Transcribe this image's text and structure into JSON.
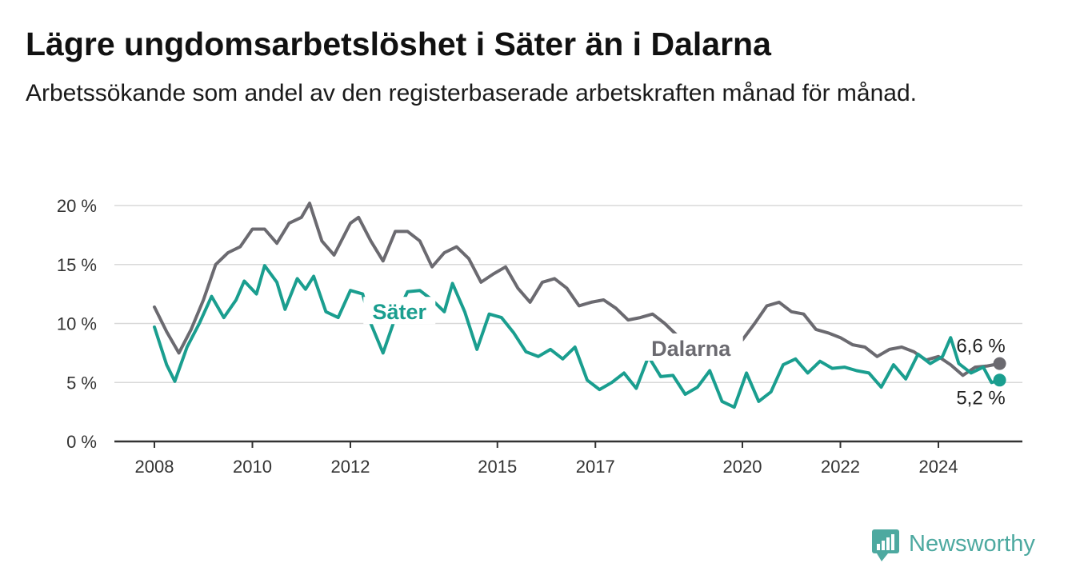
{
  "title": "Lägre ungdomsarbetslöshet i Säter än i Dalarna",
  "subtitle": "Arbetssökande som andel av den registerbaserade arbetskraften månad för månad.",
  "brand": {
    "name": "Newsworthy",
    "color": "#4da9a0"
  },
  "chart_data": {
    "type": "line",
    "x_ticks": [
      "2008",
      "2010",
      "2012",
      "2015",
      "2017",
      "2020",
      "2022",
      "2024"
    ],
    "y_ticks": [
      "0 %",
      "5 %",
      "10 %",
      "15 %",
      "20 %"
    ],
    "ylim": [
      0,
      20
    ],
    "xlim": [
      "2008-01",
      "2025-11"
    ],
    "grid": true,
    "legend": "inline",
    "series": [
      {
        "name": "Dalarna",
        "color": "#6b6a70",
        "end_label": "6,6 %",
        "points": [
          [
            "2008-01",
            11.4
          ],
          [
            "2008-04",
            9.3
          ],
          [
            "2008-07",
            7.5
          ],
          [
            "2008-10",
            9.5
          ],
          [
            "2009-01",
            12.0
          ],
          [
            "2009-04",
            15.0
          ],
          [
            "2009-07",
            16.0
          ],
          [
            "2009-10",
            16.5
          ],
          [
            "2010-01",
            18.0
          ],
          [
            "2010-04",
            18.0
          ],
          [
            "2010-07",
            16.8
          ],
          [
            "2010-10",
            18.5
          ],
          [
            "2011-01",
            19.0
          ],
          [
            "2011-03",
            20.2
          ],
          [
            "2011-06",
            17.0
          ],
          [
            "2011-09",
            15.8
          ],
          [
            "2012-01",
            18.5
          ],
          [
            "2012-03",
            19.0
          ],
          [
            "2012-06",
            17.0
          ],
          [
            "2012-09",
            15.3
          ],
          [
            "2012-12",
            17.8
          ],
          [
            "2013-03",
            17.8
          ],
          [
            "2013-06",
            17.0
          ],
          [
            "2013-09",
            14.8
          ],
          [
            "2013-12",
            16.0
          ],
          [
            "2014-03",
            16.5
          ],
          [
            "2014-06",
            15.5
          ],
          [
            "2014-09",
            13.5
          ],
          [
            "2014-12",
            14.2
          ],
          [
            "2015-03",
            14.8
          ],
          [
            "2015-06",
            13.0
          ],
          [
            "2015-09",
            11.8
          ],
          [
            "2015-12",
            13.5
          ],
          [
            "2016-03",
            13.8
          ],
          [
            "2016-06",
            13.0
          ],
          [
            "2016-09",
            11.5
          ],
          [
            "2016-12",
            11.8
          ],
          [
            "2017-03",
            12.0
          ],
          [
            "2017-06",
            11.3
          ],
          [
            "2017-09",
            10.3
          ],
          [
            "2017-12",
            10.5
          ],
          [
            "2018-03",
            10.8
          ],
          [
            "2018-06",
            10.0
          ],
          [
            "2018-09",
            9.0
          ],
          [
            "2019-03",
            7.5
          ],
          [
            "2019-09",
            8.0
          ],
          [
            "2020-01",
            8.6
          ],
          [
            "2020-04",
            10.0
          ],
          [
            "2020-07",
            11.5
          ],
          [
            "2020-10",
            11.8
          ],
          [
            "2021-01",
            11.0
          ],
          [
            "2021-04",
            10.8
          ],
          [
            "2021-07",
            9.5
          ],
          [
            "2021-10",
            9.2
          ],
          [
            "2022-01",
            8.8
          ],
          [
            "2022-04",
            8.2
          ],
          [
            "2022-07",
            8.0
          ],
          [
            "2022-10",
            7.2
          ],
          [
            "2023-01",
            7.8
          ],
          [
            "2023-04",
            8.0
          ],
          [
            "2023-07",
            7.6
          ],
          [
            "2023-10",
            6.9
          ],
          [
            "2024-01",
            7.2
          ],
          [
            "2024-04",
            6.5
          ],
          [
            "2024-07",
            5.6
          ],
          [
            "2024-10",
            6.3
          ],
          [
            "2025-01",
            6.4
          ],
          [
            "2025-04",
            6.6
          ]
        ]
      },
      {
        "name": "Säter",
        "color": "#1a9e8f",
        "end_label": "5,2 %",
        "points": [
          [
            "2008-01",
            9.7
          ],
          [
            "2008-04",
            6.5
          ],
          [
            "2008-06",
            5.1
          ],
          [
            "2008-09",
            8.0
          ],
          [
            "2008-12",
            10.0
          ],
          [
            "2009-03",
            12.3
          ],
          [
            "2009-06",
            10.5
          ],
          [
            "2009-09",
            12.0
          ],
          [
            "2009-11",
            13.6
          ],
          [
            "2010-02",
            12.5
          ],
          [
            "2010-04",
            14.9
          ],
          [
            "2010-07",
            13.5
          ],
          [
            "2010-09",
            11.2
          ],
          [
            "2010-12",
            13.8
          ],
          [
            "2011-02",
            12.9
          ],
          [
            "2011-04",
            14.0
          ],
          [
            "2011-07",
            11.0
          ],
          [
            "2011-10",
            10.5
          ],
          [
            "2012-01",
            12.8
          ],
          [
            "2012-04",
            12.5
          ],
          [
            "2012-06",
            10.0
          ],
          [
            "2012-09",
            7.5
          ],
          [
            "2012-12",
            10.5
          ],
          [
            "2013-03",
            12.7
          ],
          [
            "2013-06",
            12.8
          ],
          [
            "2013-09",
            12.0
          ],
          [
            "2013-12",
            11.0
          ],
          [
            "2014-02",
            13.4
          ],
          [
            "2014-05",
            11.0
          ],
          [
            "2014-08",
            7.8
          ],
          [
            "2014-11",
            10.8
          ],
          [
            "2015-02",
            10.5
          ],
          [
            "2015-05",
            9.2
          ],
          [
            "2015-08",
            7.6
          ],
          [
            "2015-11",
            7.2
          ],
          [
            "2016-02",
            7.8
          ],
          [
            "2016-05",
            7.0
          ],
          [
            "2016-08",
            8.0
          ],
          [
            "2016-11",
            5.2
          ],
          [
            "2017-02",
            4.4
          ],
          [
            "2017-05",
            5.0
          ],
          [
            "2017-08",
            5.8
          ],
          [
            "2017-11",
            4.5
          ],
          [
            "2018-02",
            7.2
          ],
          [
            "2018-05",
            5.5
          ],
          [
            "2018-08",
            5.6
          ],
          [
            "2018-11",
            4.0
          ],
          [
            "2019-02",
            4.6
          ],
          [
            "2019-05",
            6.0
          ],
          [
            "2019-08",
            3.4
          ],
          [
            "2019-11",
            2.9
          ],
          [
            "2020-02",
            5.8
          ],
          [
            "2020-05",
            3.4
          ],
          [
            "2020-08",
            4.2
          ],
          [
            "2020-11",
            6.5
          ],
          [
            "2021-02",
            7.0
          ],
          [
            "2021-05",
            5.8
          ],
          [
            "2021-08",
            6.8
          ],
          [
            "2021-11",
            6.2
          ],
          [
            "2022-02",
            6.3
          ],
          [
            "2022-05",
            6.0
          ],
          [
            "2022-08",
            5.8
          ],
          [
            "2022-11",
            4.6
          ],
          [
            "2023-02",
            6.5
          ],
          [
            "2023-05",
            5.3
          ],
          [
            "2023-08",
            7.4
          ],
          [
            "2023-11",
            6.6
          ],
          [
            "2024-02",
            7.2
          ],
          [
            "2024-04",
            8.8
          ],
          [
            "2024-06",
            6.6
          ],
          [
            "2024-09",
            5.8
          ],
          [
            "2024-12",
            6.3
          ],
          [
            "2025-02",
            5.0
          ],
          [
            "2025-04",
            5.2
          ]
        ]
      }
    ]
  }
}
